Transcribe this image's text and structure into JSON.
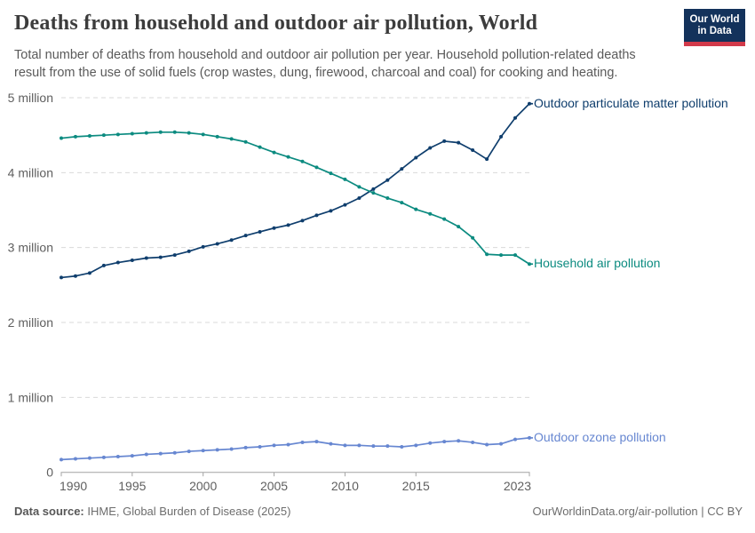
{
  "header": {
    "title": "Deaths from household and outdoor air pollution, World",
    "subtitle_line1": "Total number of deaths from household and outdoor air pollution per year. Household pollution-related deaths",
    "subtitle_line2": "result from the use of solid fuels (crop wastes, dung, firewood, charcoal and coal) for cooking and heating.",
    "logo": {
      "line1": "Our World",
      "line2": "in Data",
      "bg_color": "#13325b",
      "accent_color": "#d23a4a"
    }
  },
  "footer": {
    "source_label": "Data source:",
    "source_text": " IHME, Global Burden of Disease (2025)",
    "attribution": "OurWorldinData.org/air-pollution | CC BY"
  },
  "chart_data": {
    "type": "line",
    "title": "Deaths from household and outdoor air pollution, World",
    "values_unit": "million deaths per year",
    "x": [
      1990,
      1991,
      1992,
      1993,
      1994,
      1995,
      1996,
      1997,
      1998,
      1999,
      2000,
      2001,
      2002,
      2003,
      2004,
      2005,
      2006,
      2007,
      2008,
      2009,
      2010,
      2011,
      2012,
      2013,
      2014,
      2015,
      2016,
      2017,
      2018,
      2019,
      2020,
      2021,
      2022,
      2023
    ],
    "series": [
      {
        "name": "Outdoor particulate matter pollution",
        "color": "#0f3e6d",
        "values": [
          2.6,
          2.62,
          2.66,
          2.76,
          2.8,
          2.83,
          2.86,
          2.87,
          2.9,
          2.95,
          3.01,
          3.05,
          3.1,
          3.16,
          3.21,
          3.26,
          3.3,
          3.36,
          3.43,
          3.49,
          3.57,
          3.66,
          3.78,
          3.9,
          4.05,
          4.2,
          4.33,
          4.42,
          4.4,
          4.3,
          4.18,
          4.48,
          4.73,
          4.92
        ]
      },
      {
        "name": "Household air pollution",
        "color": "#0c8b80",
        "values": [
          4.46,
          4.48,
          4.49,
          4.5,
          4.51,
          4.52,
          4.53,
          4.54,
          4.54,
          4.53,
          4.51,
          4.48,
          4.45,
          4.41,
          4.34,
          4.27,
          4.21,
          4.15,
          4.07,
          3.99,
          3.91,
          3.81,
          3.73,
          3.66,
          3.6,
          3.51,
          3.45,
          3.38,
          3.28,
          3.13,
          2.91,
          2.9,
          2.9,
          2.78
        ]
      },
      {
        "name": "Outdoor ozone pollution",
        "color": "#6787d1",
        "values": [
          0.17,
          0.18,
          0.19,
          0.2,
          0.21,
          0.22,
          0.24,
          0.25,
          0.26,
          0.28,
          0.29,
          0.3,
          0.31,
          0.33,
          0.34,
          0.36,
          0.37,
          0.4,
          0.41,
          0.38,
          0.36,
          0.36,
          0.35,
          0.35,
          0.34,
          0.36,
          0.39,
          0.41,
          0.42,
          0.4,
          0.37,
          0.38,
          0.44,
          0.46
        ]
      }
    ],
    "x_ticks": [
      1990,
      1995,
      2000,
      2005,
      2010,
      2015,
      2023
    ],
    "y_ticks": [
      {
        "value": 0,
        "label": "0"
      },
      {
        "value": 1,
        "label": "1 million"
      },
      {
        "value": 2,
        "label": "2 million"
      },
      {
        "value": 3,
        "label": "3 million"
      },
      {
        "value": 4,
        "label": "4 million"
      },
      {
        "value": 5,
        "label": "5 million"
      }
    ],
    "xlim": [
      1990,
      2023
    ],
    "ylim": [
      0,
      5
    ],
    "grid": "horizontal-dashed",
    "legend": "line-end-labels"
  }
}
